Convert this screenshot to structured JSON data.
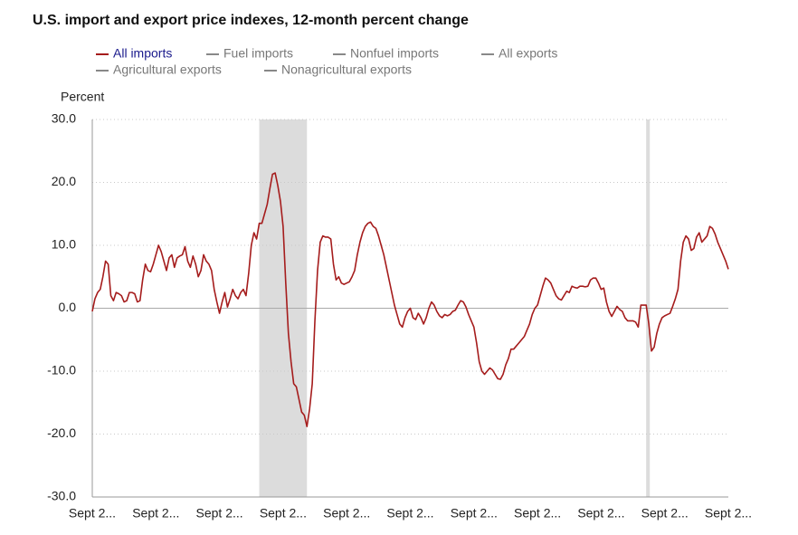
{
  "chart_data": {
    "type": "line",
    "title": "U.S. import and export price indexes, 12-month percent change",
    "y_label": "Percent",
    "categories": [
      "Sept 2...",
      null,
      null,
      null,
      null,
      null,
      null,
      null,
      null,
      null,
      null,
      null,
      null,
      null,
      null,
      null,
      null,
      null,
      null,
      null,
      null,
      null,
      null,
      null,
      "Sept 2...",
      null,
      null,
      null,
      null,
      null,
      null,
      null,
      null,
      null,
      null,
      null,
      null,
      null,
      null,
      null,
      null,
      null,
      null,
      null,
      null,
      null,
      null,
      null,
      "Sept 2...",
      null,
      null,
      null,
      null,
      null,
      null,
      null,
      null,
      null,
      null,
      null,
      null,
      null,
      null,
      null,
      null,
      null,
      null,
      null,
      null,
      null,
      null,
      null,
      "Sept 2...",
      null,
      null,
      null,
      null,
      null,
      null,
      null,
      null,
      null,
      null,
      null,
      null,
      null,
      null,
      null,
      null,
      null,
      null,
      null,
      null,
      null,
      null,
      null,
      "Sept 2...",
      null,
      null,
      null,
      null,
      null,
      null,
      null,
      null,
      null,
      null,
      null,
      null,
      null,
      null,
      null,
      null,
      null,
      null,
      null,
      null,
      null,
      null,
      null,
      "Sept 2...",
      null,
      null,
      null,
      null,
      null,
      null,
      null,
      null,
      null,
      null,
      null,
      null,
      null,
      null,
      null,
      null,
      null,
      null,
      null,
      null,
      null,
      null,
      null,
      "Sept 2...",
      null,
      null,
      null,
      null,
      null,
      null,
      null,
      null,
      null,
      null,
      null,
      null,
      null,
      null,
      null,
      null,
      null,
      null,
      null,
      null,
      null,
      null,
      null,
      "Sept 2...",
      null,
      null,
      null,
      null,
      null,
      null,
      null,
      null,
      null,
      null,
      null,
      null,
      null,
      null,
      null,
      null,
      null,
      null,
      null,
      null,
      null,
      null,
      null,
      "Sept 2...",
      null,
      null,
      null,
      null,
      null,
      null,
      null,
      null,
      null,
      null,
      null,
      null,
      null,
      null,
      null,
      null,
      null,
      null,
      null,
      null,
      null,
      null,
      null,
      "Sept 2...",
      null,
      null,
      null,
      null,
      null,
      null,
      null,
      null,
      null,
      null,
      null,
      null,
      null,
      null,
      null,
      null,
      null,
      null,
      null,
      null,
      null,
      null,
      null,
      "Sept 2..."
    ],
    "series": [
      {
        "name": "All imports",
        "color": "#a51c1c",
        "values": [
          -0.5,
          1.5,
          2.5,
          3.0,
          5.0,
          7.5,
          7.0,
          2.0,
          1.2,
          2.5,
          2.3,
          2.0,
          1.0,
          1.2,
          2.5,
          2.5,
          2.3,
          1.0,
          1.2,
          4.5,
          7.0,
          6.0,
          5.8,
          7.0,
          8.5,
          10.0,
          9.0,
          7.5,
          6.0,
          8.0,
          8.5,
          6.5,
          8.0,
          8.3,
          8.5,
          9.8,
          7.5,
          6.5,
          8.3,
          7.0,
          5.0,
          6.0,
          8.5,
          7.5,
          7.0,
          6.0,
          3.0,
          1.0,
          -0.8,
          1.0,
          2.5,
          0.2,
          1.5,
          3.0,
          2.0,
          1.5,
          2.5,
          3.0,
          2.0,
          5.5,
          10.0,
          12.0,
          11.0,
          13.5,
          13.5,
          15.0,
          16.5,
          19.0,
          21.3,
          21.5,
          19.5,
          17.0,
          13.0,
          4.0,
          -4.0,
          -8.5,
          -12.0,
          -12.5,
          -14.5,
          -16.5,
          -17.0,
          -18.8,
          -16.0,
          -12.0,
          -2.0,
          6.0,
          10.5,
          11.5,
          11.3,
          11.3,
          11.0,
          7.0,
          4.5,
          5.0,
          4.0,
          3.8,
          4.0,
          4.2,
          5.0,
          6.0,
          8.5,
          10.5,
          12.0,
          13.0,
          13.5,
          13.7,
          13.0,
          12.7,
          11.5,
          10.0,
          8.5,
          6.5,
          4.5,
          2.5,
          0.5,
          -1.0,
          -2.5,
          -3.0,
          -1.5,
          -0.5,
          0.0,
          -1.5,
          -1.8,
          -0.8,
          -1.5,
          -2.5,
          -1.5,
          0.0,
          1.0,
          0.5,
          -0.5,
          -1.2,
          -1.5,
          -1.0,
          -1.2,
          -1.0,
          -0.5,
          -0.3,
          0.5,
          1.2,
          1.0,
          0.2,
          -1.0,
          -2.0,
          -3.0,
          -5.5,
          -8.5,
          -10.0,
          -10.5,
          -10.0,
          -9.5,
          -9.8,
          -10.5,
          -11.2,
          -11.3,
          -10.5,
          -9.0,
          -8.0,
          -6.5,
          -6.5,
          -6.0,
          -5.5,
          -5.0,
          -4.5,
          -3.5,
          -2.5,
          -1.0,
          0.0,
          0.5,
          2.0,
          3.5,
          4.8,
          4.5,
          4.0,
          3.0,
          2.0,
          1.5,
          1.3,
          2.0,
          2.7,
          2.5,
          3.5,
          3.3,
          3.2,
          3.5,
          3.5,
          3.4,
          3.5,
          4.5,
          4.8,
          4.8,
          4.0,
          3.0,
          3.2,
          1.0,
          -0.5,
          -1.3,
          -0.5,
          0.3,
          -0.2,
          -0.5,
          -1.5,
          -2.0,
          -2.0,
          -2.0,
          -2.2,
          -3.0,
          0.5,
          0.5,
          0.5,
          -2.5,
          -6.8,
          -6.2,
          -4.0,
          -2.5,
          -1.5,
          -1.2,
          -1.0,
          -0.8,
          0.3,
          1.5,
          3.0,
          7.5,
          10.5,
          11.5,
          11.0,
          9.2,
          9.5,
          11.3,
          12.0,
          10.5,
          11.0,
          11.5,
          13.0,
          12.7,
          11.8,
          10.5,
          9.5,
          8.5,
          7.5,
          6.2
        ]
      },
      {
        "name": "Fuel imports",
        "color": "#888888",
        "hidden": true
      },
      {
        "name": "Nonfuel imports",
        "color": "#888888",
        "hidden": true
      },
      {
        "name": "All exports",
        "color": "#888888",
        "hidden": true
      },
      {
        "name": "Agricultural exports",
        "color": "#888888",
        "hidden": true
      },
      {
        "name": "Nonagricultural exports",
        "color": "#888888",
        "hidden": true
      }
    ],
    "recessions": [
      [
        63,
        81
      ],
      [
        209,
        210
      ]
    ],
    "recession_color": "#dcdcdc",
    "ylim": [
      -30,
      30
    ],
    "yticks": [
      {
        "value": -30,
        "label": "-30.0"
      },
      {
        "value": -20,
        "label": "-20.0"
      },
      {
        "value": -10,
        "label": "-10.0"
      },
      {
        "value": 0,
        "label": "0.0"
      },
      {
        "value": 10,
        "label": "10.0"
      },
      {
        "value": 20,
        "label": "20.0"
      },
      {
        "value": 30,
        "label": "30.0"
      }
    ],
    "grid": true
  }
}
